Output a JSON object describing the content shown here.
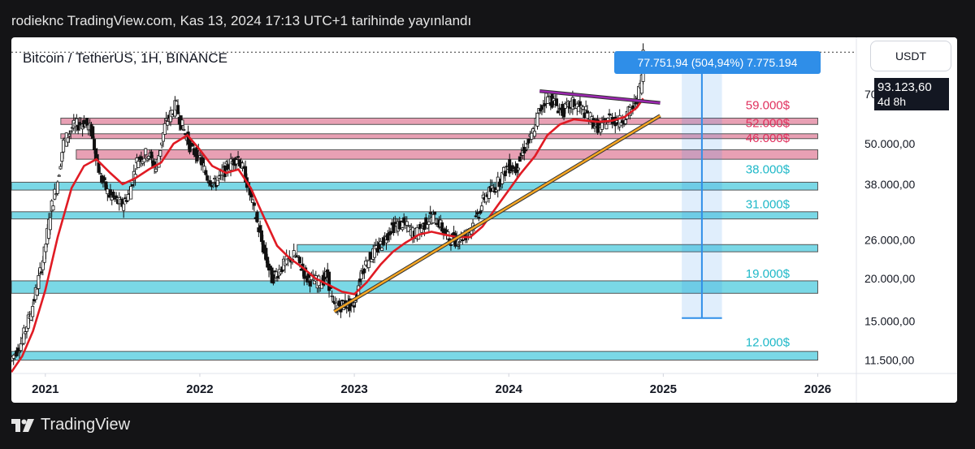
{
  "header": {
    "published_text": "rodieknc TradingView.com, Kas 13, 2024 17:13 UTC+1 tarihinde yayınlandı"
  },
  "toolbar": {
    "currency_label": "USDT"
  },
  "footer": {
    "brand": "TradingView"
  },
  "measure_label": "77.751,94 (504,94%) 7.775.194",
  "current_price": {
    "value": "93.123,60",
    "countdown": "4d 8h"
  },
  "chart_data": {
    "type": "candlestick",
    "title": "Bitcoin / TetherUS, 1H, BINANCE",
    "scale": "log",
    "ylim": [
      10500,
      103000
    ],
    "xlim": [
      2020.78,
      2026.25
    ],
    "x_ticks": [
      {
        "label": "2021",
        "value": 2021
      },
      {
        "label": "2022",
        "value": 2022
      },
      {
        "label": "2023",
        "value": 2023
      },
      {
        "label": "2024",
        "value": 2024
      },
      {
        "label": "2025",
        "value": 2025
      },
      {
        "label": "2026",
        "value": 2026
      }
    ],
    "y_ticks": [
      {
        "label": "70.000,00",
        "value": 70000
      },
      {
        "label": "50.000,00",
        "value": 50000
      },
      {
        "label": "38.000,00",
        "value": 38000
      },
      {
        "label": "26.000,00",
        "value": 26000
      },
      {
        "label": "20.000,00",
        "value": 20000
      },
      {
        "label": "15.000,00",
        "value": 15000
      },
      {
        "label": "11.500,00",
        "value": 11500
      }
    ],
    "zones": [
      {
        "label": "59.000$",
        "low": 57000,
        "high": 59500,
        "color": "#e8a0b4",
        "label_color": "#e0315e",
        "x0": 2021.1,
        "x1": 2026
      },
      {
        "label": "52.000$",
        "low": 52000,
        "high": 53500,
        "color": "#e8a0b4",
        "label_color": "#e0315e",
        "x0": 2021.1,
        "x1": 2026
      },
      {
        "label": "46.000$",
        "low": 45000,
        "high": 48000,
        "color": "#e8a0b4",
        "label_color": "#e0315e",
        "x0": 2021.2,
        "x1": 2026
      },
      {
        "label": "38.000$",
        "low": 36500,
        "high": 38500,
        "color": "#7ad8e6",
        "label_color": "#1eb8c8",
        "x0": 2020.78,
        "x1": 2026
      },
      {
        "label": "31.000$",
        "low": 30000,
        "high": 31500,
        "color": "#7ad8e6",
        "label_color": "#1eb8c8",
        "x0": 2020.78,
        "x1": 2026
      },
      {
        "label": "",
        "low": 24000,
        "high": 25200,
        "color": "#7ad8e6",
        "label_color": "#1eb8c8",
        "x0": 2022.63,
        "x1": 2026
      },
      {
        "label": "19.000$",
        "low": 18100,
        "high": 19700,
        "color": "#7ad8e6",
        "label_color": "#1eb8c8",
        "x0": 2020.78,
        "x1": 2026
      },
      {
        "label": "12.000$",
        "low": 11500,
        "high": 12200,
        "color": "#7ad8e6",
        "label_color": "#1eb8c8",
        "x0": 2020.78,
        "x1": 2026
      }
    ],
    "label_prices": {
      "59.000$": 65000,
      "52.000$": 57500,
      "46.000$": 52000,
      "38.000$": 42000,
      "31.000$": 33200,
      "19.000$": 20700,
      "12.000$": 13000
    },
    "last_price": 93123.6,
    "series": [
      {
        "name": "BTCUSDT",
        "type": "candles",
        "points": [
          [
            2020.78,
            11500
          ],
          [
            2020.85,
            13000
          ],
          [
            2020.92,
            16500
          ],
          [
            2021.0,
            24000
          ],
          [
            2021.04,
            32000
          ],
          [
            2021.08,
            38000
          ],
          [
            2021.12,
            50000
          ],
          [
            2021.18,
            56000
          ],
          [
            2021.25,
            58000
          ],
          [
            2021.3,
            55000
          ],
          [
            2021.36,
            40000
          ],
          [
            2021.42,
            35000
          ],
          [
            2021.5,
            33000
          ],
          [
            2021.55,
            36000
          ],
          [
            2021.6,
            45000
          ],
          [
            2021.67,
            47000
          ],
          [
            2021.72,
            42000
          ],
          [
            2021.78,
            57000
          ],
          [
            2021.85,
            65000
          ],
          [
            2021.88,
            58000
          ],
          [
            2021.95,
            48000
          ],
          [
            2022.0,
            46000
          ],
          [
            2022.05,
            40000
          ],
          [
            2022.1,
            38000
          ],
          [
            2022.17,
            42000
          ],
          [
            2022.25,
            46000
          ],
          [
            2022.3,
            40000
          ],
          [
            2022.37,
            30000
          ],
          [
            2022.42,
            24000
          ],
          [
            2022.47,
            20000
          ],
          [
            2022.55,
            22000
          ],
          [
            2022.62,
            23500
          ],
          [
            2022.7,
            20000
          ],
          [
            2022.78,
            19500
          ],
          [
            2022.83,
            20500
          ],
          [
            2022.87,
            16500
          ],
          [
            2022.95,
            16800
          ],
          [
            2023.0,
            16600
          ],
          [
            2023.05,
            21000
          ],
          [
            2023.1,
            23000
          ],
          [
            2023.17,
            25000
          ],
          [
            2023.25,
            28500
          ],
          [
            2023.32,
            29000
          ],
          [
            2023.4,
            27000
          ],
          [
            2023.5,
            30500
          ],
          [
            2023.55,
            29500
          ],
          [
            2023.6,
            26500
          ],
          [
            2023.67,
            26000
          ],
          [
            2023.73,
            27000
          ],
          [
            2023.8,
            30500
          ],
          [
            2023.85,
            35000
          ],
          [
            2023.92,
            37500
          ],
          [
            2024.0,
            43000
          ],
          [
            2024.05,
            42000
          ],
          [
            2024.1,
            48000
          ],
          [
            2024.15,
            52000
          ],
          [
            2024.2,
            62000
          ],
          [
            2024.25,
            69000
          ],
          [
            2024.3,
            66000
          ],
          [
            2024.35,
            62000
          ],
          [
            2024.42,
            66000
          ],
          [
            2024.5,
            62000
          ],
          [
            2024.55,
            58000
          ],
          [
            2024.6,
            55000
          ],
          [
            2024.65,
            60000
          ],
          [
            2024.72,
            58000
          ],
          [
            2024.8,
            63000
          ],
          [
            2024.83,
            67000
          ],
          [
            2024.86,
            75000
          ],
          [
            2024.87,
            85000
          ],
          [
            2024.875,
            93123.6
          ]
        ]
      },
      {
        "name": "MA",
        "type": "line",
        "color": "#e01b24",
        "points": [
          [
            2020.78,
            10600
          ],
          [
            2020.85,
            11800
          ],
          [
            2020.92,
            14000
          ],
          [
            2021.0,
            18500
          ],
          [
            2021.08,
            26500
          ],
          [
            2021.17,
            37000
          ],
          [
            2021.25,
            43000
          ],
          [
            2021.33,
            45000
          ],
          [
            2021.42,
            41000
          ],
          [
            2021.5,
            38000
          ],
          [
            2021.58,
            39500
          ],
          [
            2021.67,
            42000
          ],
          [
            2021.75,
            44000
          ],
          [
            2021.83,
            50000
          ],
          [
            2021.92,
            53000
          ],
          [
            2022.0,
            48000
          ],
          [
            2022.08,
            43000
          ],
          [
            2022.17,
            41000
          ],
          [
            2022.25,
            42000
          ],
          [
            2022.33,
            37000
          ],
          [
            2022.42,
            30000
          ],
          [
            2022.5,
            25000
          ],
          [
            2022.58,
            23000
          ],
          [
            2022.67,
            21500
          ],
          [
            2022.75,
            20000
          ],
          [
            2022.83,
            19200
          ],
          [
            2022.92,
            18300
          ],
          [
            2023.0,
            18000
          ],
          [
            2023.08,
            19500
          ],
          [
            2023.17,
            22000
          ],
          [
            2023.25,
            24000
          ],
          [
            2023.33,
            25500
          ],
          [
            2023.42,
            27000
          ],
          [
            2023.5,
            27500
          ],
          [
            2023.58,
            27000
          ],
          [
            2023.67,
            26500
          ],
          [
            2023.75,
            26500
          ],
          [
            2023.83,
            28500
          ],
          [
            2023.92,
            32500
          ],
          [
            2024.0,
            36500
          ],
          [
            2024.08,
            41000
          ],
          [
            2024.17,
            46000
          ],
          [
            2024.25,
            53000
          ],
          [
            2024.33,
            57000
          ],
          [
            2024.42,
            59000
          ],
          [
            2024.5,
            58500
          ],
          [
            2024.58,
            58000
          ],
          [
            2024.67,
            58500
          ],
          [
            2024.75,
            60000
          ],
          [
            2024.83,
            64000
          ],
          [
            2024.87,
            68000
          ]
        ]
      }
    ],
    "annotations": [
      {
        "name": "uptrend-line",
        "color": "#f5a623",
        "from": [
          2022.87,
          16000
        ],
        "to": [
          2024.98,
          60500
        ]
      },
      {
        "name": "resistance-line",
        "color": "#9c27b0",
        "from": [
          2024.2,
          71500
        ],
        "to": [
          2024.98,
          66000
        ]
      },
      {
        "name": "measure-arrow",
        "color": "#2f8ee8",
        "from": [
          2025.25,
          15300
        ],
        "to": [
          2025.25,
          93123.6
        ],
        "band": [
          2025.12,
          2025.38
        ]
      }
    ]
  }
}
